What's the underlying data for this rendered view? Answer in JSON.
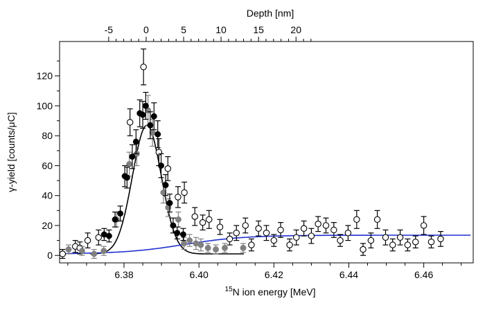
{
  "chart_data": {
    "type": "scatter",
    "xlabel_bottom": {
      "sup": "15",
      "text": "N ion energy [MeV]"
    },
    "xlabel_top": "Depth [nm]",
    "ylabel": "γ-yield [counts/μC]",
    "xlim": [
      6.3628,
      6.4732
    ],
    "ylim": [
      -5,
      143
    ],
    "x_ticks": [
      6.38,
      6.4,
      6.42,
      6.44,
      6.46
    ],
    "x_tick_labels": [
      "6.38",
      "6.40",
      "6.42",
      "6.44",
      "6.46"
    ],
    "y_ticks": [
      0,
      20,
      40,
      60,
      80,
      100,
      120
    ],
    "y_tick_labels": [
      "0",
      "20",
      "40",
      "60",
      "80",
      "100",
      "120"
    ],
    "top_ticks": [
      -5,
      0,
      5,
      10,
      15,
      20
    ],
    "top_tick_labels": [
      "-5",
      "0",
      "5",
      "10",
      "15",
      "20"
    ],
    "top_axis_map": {
      "x0_energy": 6.3859,
      "energy_per_nm": 0.002
    },
    "grid": false,
    "legend": "none",
    "colors": {
      "black": "#000000",
      "grey": "#808080",
      "blue": "#1f2fd0"
    },
    "series": [
      {
        "style": "open",
        "color": "#000000",
        "points": [
          [
            6.3636,
            1,
            3
          ],
          [
            6.367,
            6,
            4
          ],
          [
            6.3682,
            5,
            4
          ],
          [
            6.3703,
            10,
            5
          ],
          [
            6.3732,
            12,
            5
          ],
          [
            6.3816,
            89,
            9
          ],
          [
            6.3852,
            126,
            12
          ],
          [
            6.3893,
            69,
            9
          ],
          [
            6.3917,
            58,
            8
          ],
          [
            6.3944,
            39,
            7
          ],
          [
            6.3961,
            42,
            7
          ],
          [
            6.3989,
            26,
            6
          ],
          [
            6.401,
            22,
            5
          ],
          [
            6.4027,
            24,
            6
          ],
          [
            6.4056,
            19,
            5
          ],
          [
            6.4082,
            11,
            4
          ],
          [
            6.41,
            15,
            5
          ],
          [
            6.4124,
            20,
            5
          ],
          [
            6.414,
            7,
            4
          ],
          [
            6.4159,
            18,
            5
          ],
          [
            6.418,
            15,
            5
          ],
          [
            6.42,
            10,
            4
          ],
          [
            6.4218,
            17,
            5
          ],
          [
            6.4242,
            7,
            4
          ],
          [
            6.426,
            12,
            5
          ],
          [
            6.428,
            18,
            5
          ],
          [
            6.43,
            13,
            5
          ],
          [
            6.4318,
            21,
            5
          ],
          [
            6.4339,
            20,
            5
          ],
          [
            6.436,
            17,
            5
          ],
          [
            6.4377,
            10,
            4
          ],
          [
            6.4398,
            15,
            5
          ],
          [
            6.4421,
            24,
            6
          ],
          [
            6.4438,
            4,
            4
          ],
          [
            6.4459,
            10,
            5
          ],
          [
            6.4476,
            24,
            6
          ],
          [
            6.4498,
            12,
            5
          ],
          [
            6.4517,
            7,
            4
          ],
          [
            6.4537,
            12,
            5
          ],
          [
            6.4557,
            7,
            4
          ],
          [
            6.4578,
            9,
            4
          ],
          [
            6.46,
            20,
            6
          ],
          [
            6.462,
            9,
            4
          ],
          [
            6.4645,
            11,
            5
          ]
        ]
      },
      {
        "style": "filled",
        "color": "#808080",
        "points": [
          [
            6.3652,
            4,
            3
          ],
          [
            6.3688,
            3,
            3
          ],
          [
            6.372,
            1,
            3
          ],
          [
            6.3746,
            3,
            3
          ],
          [
            6.378,
            24,
            5
          ],
          [
            6.3814,
            61,
            8
          ],
          [
            6.3834,
            68,
            8
          ],
          [
            6.3864,
            97,
            10
          ],
          [
            6.3876,
            82,
            9
          ],
          [
            6.3905,
            42,
            7
          ],
          [
            6.3918,
            32,
            6
          ],
          [
            6.3945,
            24,
            5
          ],
          [
            6.396,
            8,
            4
          ],
          [
            6.3975,
            10,
            4
          ],
          [
            6.3992,
            8,
            4
          ],
          [
            6.4005,
            7,
            4
          ],
          [
            6.4024,
            5,
            3
          ],
          [
            6.4045,
            4,
            3
          ],
          [
            6.4069,
            5,
            3
          ],
          [
            6.4118,
            5,
            3
          ]
        ]
      },
      {
        "style": "filled",
        "color": "#000000",
        "points": [
          [
            6.3747,
            14,
            4
          ],
          [
            6.376,
            13,
            4
          ],
          [
            6.3776,
            24,
            5
          ],
          [
            6.379,
            28,
            5
          ],
          [
            6.3802,
            53,
            7
          ],
          [
            6.3808,
            52,
            7
          ],
          [
            6.3822,
            66,
            8
          ],
          [
            6.3832,
            76,
            8
          ],
          [
            6.3842,
            95,
            9
          ],
          [
            6.385,
            94,
            9
          ],
          [
            6.3858,
            100,
            9
          ],
          [
            6.387,
            87,
            9
          ],
          [
            6.388,
            93,
            9
          ],
          [
            6.389,
            81,
            9
          ],
          [
            6.3899,
            60,
            8
          ],
          [
            6.3911,
            47,
            7
          ],
          [
            6.3922,
            35,
            6
          ],
          [
            6.3931,
            20,
            5
          ],
          [
            6.3942,
            15,
            4
          ],
          [
            6.3958,
            14,
            4
          ]
        ]
      }
    ],
    "fits": [
      {
        "shape": "gaussian",
        "color": "#000000",
        "center": 6.3861,
        "amplitude": 86,
        "sigma": 0.00385,
        "baseline": 1,
        "range": [
          6.371,
          6.412
        ]
      },
      {
        "shape": "sigmoid",
        "color": "#1f2fd0",
        "start": 1,
        "plateau": 13.5,
        "midpoint": 6.396,
        "width": 0.008,
        "range": [
          6.3636,
          6.4725
        ]
      }
    ]
  }
}
